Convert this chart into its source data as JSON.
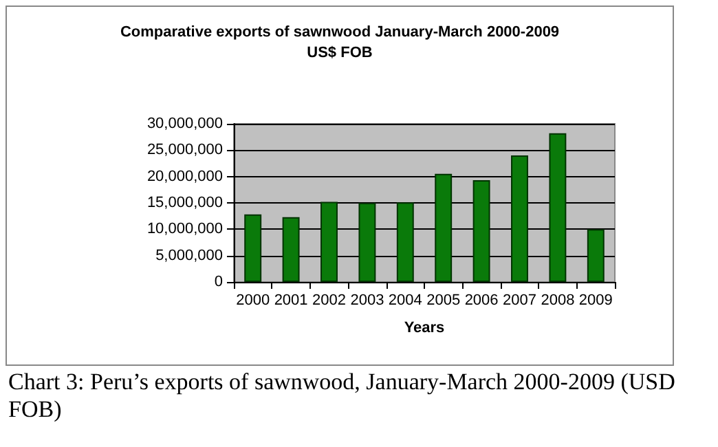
{
  "chart_data": {
    "type": "bar",
    "title": "Comparative exports of sawnwood January-March 2000-2009\nUS$ FOB",
    "xlabel": "Years",
    "categories": [
      "2000",
      "2001",
      "2002",
      "2003",
      "2004",
      "2005",
      "2006",
      "2007",
      "2008",
      "2009"
    ],
    "values": [
      12800000,
      12300000,
      15200000,
      15000000,
      15100000,
      20500000,
      19300000,
      24000000,
      28200000,
      10000000
    ],
    "color": "#0a7a0a",
    "ylim": [
      0,
      30000000
    ],
    "yticks": [
      0,
      {
        "value": 5000000,
        "label": "5,000,000"
      },
      {
        "value": 10000000,
        "label": "10,000,000"
      },
      {
        "value": 15000000,
        "label": "15,000,000"
      },
      {
        "value": 20000000,
        "label": "20,000,000"
      },
      {
        "value": 25000000,
        "label": "25,000,000"
      },
      {
        "value": 30000000,
        "label": "30,000,000"
      }
    ],
    "grid": "y",
    "annotations": [
      "Chart 3: Peru’s exports of sawnwood, January-March 2000-2009 (USD FOB)"
    ]
  }
}
